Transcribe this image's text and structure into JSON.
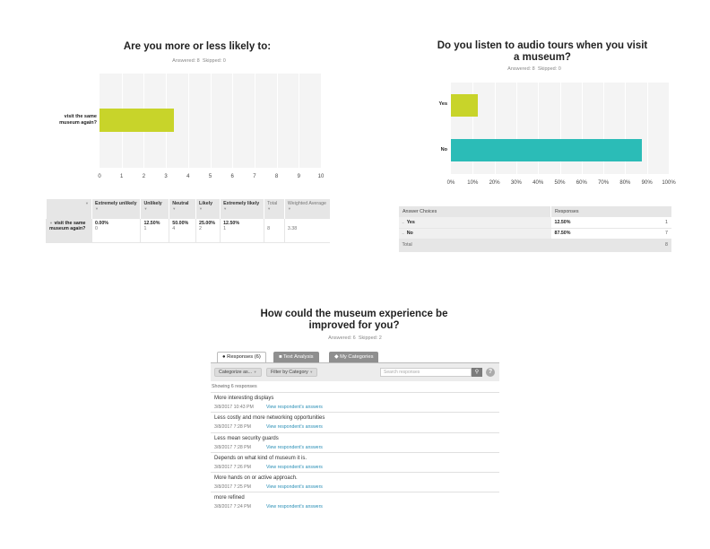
{
  "q1": {
    "title": "Are you more or less likely to:",
    "answered_label": "Answered: 8",
    "skipped_label": "Skipped: 0",
    "chart_data": {
      "type": "bar",
      "orientation": "horizontal",
      "categories": [
        "visit the same museum again?"
      ],
      "values": [
        3.38
      ],
      "xlim": [
        0,
        10
      ],
      "xticks": [
        "0",
        "1",
        "2",
        "3",
        "4",
        "5",
        "6",
        "7",
        "8",
        "9",
        "10"
      ],
      "bar_color": "#c8d42a"
    },
    "table": {
      "headers": [
        "Extremely unlikely",
        "Unlikely",
        "Neutral",
        "Likely",
        "Extremely likely",
        "Total",
        "Weighted Average"
      ],
      "row_label": "visit the same museum again?",
      "cells": [
        {
          "pct": "0.00%",
          "count": "0"
        },
        {
          "pct": "12.50%",
          "count": "1"
        },
        {
          "pct": "50.00%",
          "count": "4"
        },
        {
          "pct": "25.00%",
          "count": "2"
        },
        {
          "pct": "12.50%",
          "count": "1"
        }
      ],
      "total": "8",
      "weighted_average": "3.38"
    }
  },
  "q2": {
    "title_line1": "Do you listen to audio tours when you visit",
    "title_line2": "a museum?",
    "answered_label": "Answered: 8",
    "skipped_label": "Skipped: 0",
    "chart_data": {
      "type": "bar",
      "orientation": "horizontal",
      "categories": [
        "Yes",
        "No"
      ],
      "values": [
        12.5,
        87.5
      ],
      "xlim": [
        0,
        100
      ],
      "xticks": [
        "0%",
        "10%",
        "20%",
        "30%",
        "40%",
        "50%",
        "60%",
        "70%",
        "80%",
        "90%",
        "100%"
      ],
      "colors": [
        "#c8d42a",
        "#2bbcb7"
      ]
    },
    "table": {
      "col_choices": "Answer Choices",
      "col_responses": "Responses",
      "rows": [
        {
          "label": "Yes",
          "pct": "12.50%",
          "count": "1"
        },
        {
          "label": "No",
          "pct": "87.50%",
          "count": "7"
        }
      ],
      "total_label": "Total",
      "total": "8"
    }
  },
  "q3": {
    "title_line1": "How could the museum experience be",
    "title_line2": "improved for you?",
    "answered_label": "Answered: 6",
    "skipped_label": "Skipped: 2",
    "tabs": {
      "responses": "Responses (6)",
      "text_analysis": "Text Analysis",
      "my_categories": "My Categories"
    },
    "toolbar": {
      "categorize": "Categorize as...",
      "filter": "Filter by Category",
      "search_placeholder": "Search responses",
      "help": "?"
    },
    "showing": "Showing 6 responses",
    "link_label": "View respondent's answers",
    "responses": [
      {
        "text": "More interesting displays",
        "date": "3/8/2017 10:43 PM"
      },
      {
        "text": "Less costly and more networking opportunities",
        "date": "3/8/2017 7:28 PM"
      },
      {
        "text": "Less mean security guards",
        "date": "3/8/2017 7:28 PM"
      },
      {
        "text": "Depends on what kind of museum it is.",
        "date": "3/8/2017 7:26 PM"
      },
      {
        "text": "More hands on or active approach.",
        "date": "3/8/2017 7:25 PM"
      },
      {
        "text": "more refined",
        "date": "3/8/2017 7:24 PM"
      }
    ]
  },
  "colors": {
    "accent_link": "#2a8fb6",
    "bar_yellow": "#c8d42a",
    "bar_teal": "#2bbcb7",
    "header_gray": "#e6e6e6"
  }
}
